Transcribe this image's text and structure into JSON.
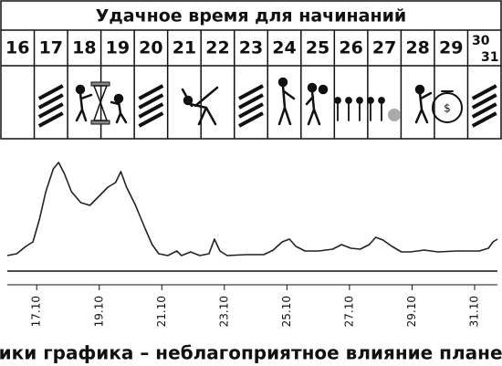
{
  "calendar": {
    "title": "Удачное время для начинаний",
    "days": [
      "16",
      "17",
      "18",
      "19",
      "20",
      "21",
      "22",
      "23",
      "24",
      "25",
      "26",
      "27",
      "28",
      "29",
      "30",
      "31"
    ]
  },
  "chart_data": {
    "type": "line",
    "caption": "Пики графика – неблагоприятное влияние планет",
    "x": [
      16.06,
      16.36,
      16.65,
      16.88,
      17.09,
      17.29,
      17.53,
      17.7,
      17.88,
      18.11,
      18.41,
      18.7,
      18.99,
      19.28,
      19.52,
      19.69,
      19.87,
      20.16,
      20.46,
      20.69,
      20.9,
      21.19,
      21.48,
      21.63,
      21.92,
      22.21,
      22.51,
      22.68,
      22.86,
      23.09,
      23.68,
      24.26,
      24.56,
      24.85,
      25.08,
      25.29,
      25.58,
      26.02,
      26.46,
      26.75,
      27.05,
      27.34,
      27.63,
      27.84,
      28.07,
      28.36,
      28.66,
      28.95,
      29.39,
      29.83,
      30.42,
      31.15,
      31.44,
      31.59,
      31.73
    ],
    "series": [
      {
        "color": "#222222",
        "values": [
          14.2,
          15.8,
          22.5,
          26.7,
          47.5,
          72.5,
          93.3,
          99.2,
          89.2,
          72.5,
          62.5,
          60,
          68.3,
          76.7,
          80.8,
          90.8,
          76.7,
          60,
          39.2,
          24.2,
          15.8,
          14.2,
          18.3,
          14.2,
          17.5,
          14.2,
          15.8,
          29.2,
          18.3,
          14.2,
          15,
          15,
          19.2,
          26.7,
          29.2,
          22.5,
          18.3,
          18.3,
          20,
          24.2,
          20.8,
          20,
          24.2,
          30.8,
          28.3,
          22.5,
          17.5,
          17.5,
          19.2,
          17.5,
          18.3,
          18.3,
          20.8,
          26.7,
          29.2
        ]
      }
    ],
    "xlim": [
      16.06,
      31.73
    ],
    "ylim": [
      0,
      100
    ],
    "xticks": [
      {
        "value": 17,
        "label": "17.10"
      },
      {
        "value": 19,
        "label": "19.10"
      },
      {
        "value": 21,
        "label": "21.10"
      },
      {
        "value": 23,
        "label": "23.10"
      },
      {
        "value": 25,
        "label": "25.10"
      },
      {
        "value": 27,
        "label": "27.10"
      },
      {
        "value": 29,
        "label": "29.10"
      },
      {
        "value": 31,
        "label": "31.10"
      }
    ]
  }
}
